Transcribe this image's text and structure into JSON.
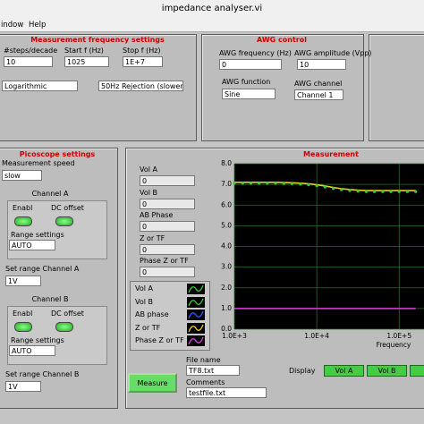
{
  "window": {
    "title": "impedance analyser.vi",
    "menu": [
      "indow",
      "Help"
    ]
  },
  "freq_panel": {
    "title": "Measurement frequency settings",
    "steps_label": "#steps/decade",
    "steps": "10",
    "start_label": "Start f (Hz)",
    "start": "1025",
    "stop_label": "Stop f (Hz)",
    "stop": "1E+7",
    "scale": "Logarithmic",
    "rejection": "50Hz Rejection (slower)"
  },
  "awg_panel": {
    "title": "AWG control",
    "freq_label": "AWG frequency (Hz)",
    "freq": "0",
    "amp_label": "AWG amplitude (Vpp)",
    "amp": "10",
    "function_label": "AWG function",
    "function": "Sine",
    "channel_label": "AWG channel",
    "channel": "Channel 1"
  },
  "pico_panel": {
    "title": "Picoscope settings",
    "speed_label": "Measurement speed",
    "speed": "slow",
    "channel_a": {
      "title": "Channel A",
      "enable": "Enabl",
      "dc_offset": "DC offset",
      "range_label": "Range settings",
      "range": "AUTO",
      "set_range_label": "Set range Channel A",
      "set_range": "1V"
    },
    "channel_b": {
      "title": "Channel B",
      "enable": "Enabl",
      "dc_offset": "DC offset",
      "range_label": "Range settings",
      "range": "AUTO",
      "set_range_label": "Set range Channel B",
      "set_range": "1V"
    }
  },
  "measurement": {
    "title": "Measurement",
    "indicators": [
      {
        "label": "Vol A",
        "value": "0"
      },
      {
        "label": "Vol B",
        "value": "0"
      },
      {
        "label": "AB Phase",
        "value": "0"
      },
      {
        "label": "Z or TF",
        "value": "0"
      },
      {
        "label": "Phase Z or TF",
        "value": "0"
      }
    ],
    "legend": [
      {
        "name": "Vol A",
        "color": "#33cc33"
      },
      {
        "name": "Vol B",
        "color": "#33cc33"
      },
      {
        "name": "AB phase",
        "color": "#3355ff"
      },
      {
        "name": "Z or TF",
        "color": "#e8d020"
      },
      {
        "name": "Phase Z or TF",
        "color": "#e040e0"
      }
    ],
    "graph": {
      "type": "line",
      "xscale": "log",
      "grid": true,
      "xlabel": "Frequency",
      "xlim": [
        1000,
        200000
      ],
      "xticks": [
        {
          "value": 1000,
          "label": "1.0E+3"
        },
        {
          "value": 10000,
          "label": "1.0E+4"
        },
        {
          "value": 100000,
          "label": "1.0E+5"
        }
      ],
      "ylim": [
        0,
        8
      ],
      "yticks": [
        {
          "value": 0,
          "label": "0.0"
        },
        {
          "value": 1,
          "label": "1.0"
        },
        {
          "value": 2,
          "label": "2.0"
        },
        {
          "value": 3,
          "label": "3.0"
        },
        {
          "value": 4,
          "label": "4.0"
        },
        {
          "value": 5,
          "label": "5.0"
        },
        {
          "value": 6,
          "label": "6.0"
        },
        {
          "value": 7,
          "label": "7.0"
        },
        {
          "value": 8,
          "label": "8.0"
        }
      ],
      "x": [
        1000,
        1259,
        1585,
        1995,
        2512,
        3162,
        3981,
        5012,
        6310,
        7943,
        10000,
        12589,
        15849,
        19953,
        25119,
        31623,
        39811,
        50119,
        63096,
        79433,
        100000,
        125893,
        158489
      ],
      "series": [
        {
          "style": "line",
          "color": "#e8d020",
          "values": [
            7.1,
            7.1,
            7.1,
            7.1,
            7.1,
            7.1,
            7.09,
            7.08,
            7.06,
            7.03,
            6.98,
            6.92,
            6.85,
            6.79,
            6.75,
            6.72,
            6.7,
            6.7,
            6.7,
            6.7,
            6.7,
            6.7,
            6.7
          ]
        },
        {
          "style": "dots",
          "color": "#33cc33",
          "values": [
            7.05,
            7.05,
            7.05,
            7.05,
            7.05,
            7.05,
            7.04,
            7.03,
            7.01,
            6.98,
            6.93,
            6.87,
            6.8,
            6.74,
            6.7,
            6.67,
            6.65,
            6.65,
            6.65,
            6.65,
            6.65,
            6.65,
            6.65
          ]
        },
        {
          "style": "line",
          "color": "#e040e0",
          "values": [
            1.0,
            1.0,
            1.0,
            1.0,
            1.0,
            1.0,
            1.0,
            1.0,
            1.0,
            1.0,
            1.0,
            1.0,
            1.0,
            1.0,
            1.0,
            1.0,
            1.0,
            1.0,
            1.0,
            1.0,
            1.0,
            1.0,
            1.0
          ]
        }
      ]
    },
    "measure_button": "Measure",
    "file_label": "File name",
    "file": "TF8.txt",
    "comments_label": "Comments",
    "comments": "testfile.txt",
    "display_label": "Display",
    "display": [
      "Vol A",
      "Vol B"
    ]
  }
}
